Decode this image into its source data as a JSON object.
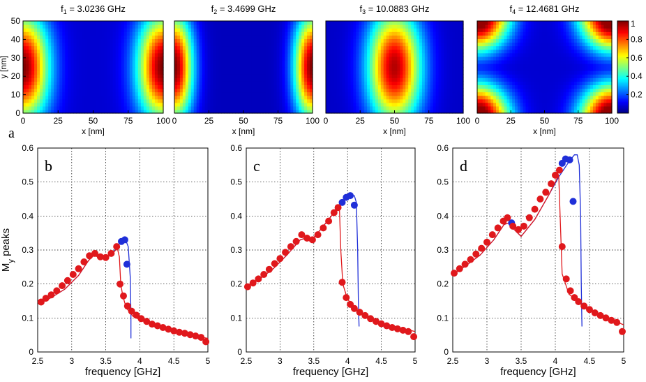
{
  "figure_panel_label": "a",
  "colorbar": {
    "ticks": [
      {
        "value": 1,
        "label": "1"
      },
      {
        "value": 0.8,
        "label": "0.8"
      },
      {
        "value": 0.6,
        "label": "0.6"
      },
      {
        "value": 0.4,
        "label": "0.4"
      },
      {
        "value": 0.2,
        "label": "0.2"
      }
    ],
    "range": [
      0,
      1
    ]
  },
  "chart_data": [
    {
      "type": "heatmap",
      "title_main": "f",
      "title_sub": "1",
      "title_value": " = 3.0236 GHz",
      "mode": "edges",
      "xlabel": "x [nm]",
      "ylabel": "y [nm]",
      "xticks": [
        0,
        25,
        50,
        75,
        100
      ],
      "yticks": [
        0,
        10,
        20,
        30,
        40,
        50
      ],
      "xlim": [
        0,
        100
      ],
      "ylim": [
        0,
        50
      ]
    },
    {
      "type": "heatmap",
      "title_main": "f",
      "title_sub": "2",
      "title_value": " = 3.4699 GHz",
      "mode": "edges_narrow",
      "xlabel": "x [nm]",
      "xticks": [
        0,
        25,
        50,
        75,
        100
      ],
      "xlim": [
        0,
        100
      ],
      "ylim": [
        0,
        50
      ]
    },
    {
      "type": "heatmap",
      "title_main": "f",
      "title_sub": "3",
      "title_value": " = 10.0883 GHz",
      "mode": "center",
      "xlabel": "x [nm]",
      "xticks": [
        0,
        25,
        50,
        75,
        100
      ],
      "xlim": [
        0,
        100
      ],
      "ylim": [
        0,
        50
      ]
    },
    {
      "type": "heatmap",
      "title_main": "f",
      "title_sub": "4",
      "title_value": " = 12.4681 GHz",
      "mode": "corners",
      "xlabel": "x [nm]",
      "xticks": [
        0,
        25,
        50,
        75,
        100
      ],
      "xlim": [
        0,
        100
      ],
      "ylim": [
        0,
        50
      ]
    },
    {
      "type": "scatter",
      "panel_label": "b",
      "xlabel": "frequency [GHz]",
      "ylabel_main": "M",
      "ylabel_sub": "y",
      "ylabel_rest": " peaks",
      "xlim": [
        2.5,
        5
      ],
      "ylim": [
        0,
        0.6
      ],
      "xticks": [
        {
          "value": 2.5,
          "label": "2.5"
        },
        {
          "value": 3,
          "label": "3"
        },
        {
          "value": 3.5,
          "label": "3.5"
        },
        {
          "value": 4,
          "label": "4"
        },
        {
          "value": 4.5,
          "label": "4.5"
        },
        {
          "value": 5,
          "label": "5"
        }
      ],
      "yticks": [
        {
          "value": 0,
          "label": "0"
        },
        {
          "value": 0.1,
          "label": "0.1"
        },
        {
          "value": 0.2,
          "label": "0.2"
        },
        {
          "value": 0.3,
          "label": "0.3"
        },
        {
          "value": 0.4,
          "label": "0.4"
        },
        {
          "value": 0.5,
          "label": "0.5"
        },
        {
          "value": 0.6,
          "label": "0.6"
        }
      ],
      "series": [
        {
          "name": "blue curve",
          "kind": "line",
          "color": "#1f2fd8",
          "x": [
            2.55,
            2.7,
            2.9,
            3.1,
            3.25,
            3.33,
            3.4,
            3.5,
            3.6,
            3.7,
            3.76,
            3.8,
            3.83,
            3.86,
            3.87,
            3.87
          ],
          "y": [
            0.145,
            0.16,
            0.185,
            0.225,
            0.27,
            0.285,
            0.278,
            0.275,
            0.29,
            0.32,
            0.33,
            0.325,
            0.31,
            0.22,
            0.11,
            0.04
          ]
        },
        {
          "name": "red curve",
          "kind": "line",
          "color": "#e0181c",
          "x": [
            2.55,
            2.7,
            2.9,
            3.1,
            3.25,
            3.33,
            3.4,
            3.5,
            3.6,
            3.67,
            3.7,
            3.72,
            3.75,
            3.8,
            3.9,
            4.0,
            4.3,
            4.6,
            5.0
          ],
          "y": [
            0.145,
            0.16,
            0.185,
            0.225,
            0.27,
            0.285,
            0.278,
            0.275,
            0.29,
            0.305,
            0.28,
            0.2,
            0.165,
            0.13,
            0.105,
            0.095,
            0.07,
            0.055,
            0.04
          ]
        },
        {
          "name": "blue markers",
          "kind": "marker",
          "color": "#1f2fd8",
          "x": [
            3.73,
            3.78,
            3.81
          ],
          "y": [
            0.325,
            0.33,
            0.258
          ]
        },
        {
          "name": "red markers",
          "kind": "marker",
          "color": "#e0181c",
          "x": [
            2.55,
            2.62,
            2.7,
            2.78,
            2.86,
            2.94,
            3.02,
            3.1,
            3.18,
            3.26,
            3.34,
            3.42,
            3.5,
            3.58,
            3.66,
            3.71,
            3.76,
            3.82,
            3.88,
            3.95,
            4.02,
            4.1,
            4.18,
            4.26,
            4.34,
            4.42,
            4.5,
            4.58,
            4.66,
            4.74,
            4.82,
            4.9,
            4.97
          ],
          "y": [
            0.147,
            0.158,
            0.168,
            0.18,
            0.195,
            0.21,
            0.228,
            0.245,
            0.265,
            0.283,
            0.29,
            0.28,
            0.278,
            0.29,
            0.31,
            0.2,
            0.165,
            0.135,
            0.12,
            0.108,
            0.098,
            0.09,
            0.082,
            0.077,
            0.072,
            0.067,
            0.062,
            0.058,
            0.055,
            0.051,
            0.047,
            0.043,
            0.03
          ]
        }
      ]
    },
    {
      "type": "scatter",
      "panel_label": "c",
      "xlabel": "frequency [GHz]",
      "xlim": [
        2.5,
        5
      ],
      "ylim": [
        0,
        0.6
      ],
      "xticks": [
        {
          "value": 2.5,
          "label": "2.5"
        },
        {
          "value": 3,
          "label": "3"
        },
        {
          "value": 3.5,
          "label": "3.5"
        },
        {
          "value": 4,
          "label": "4"
        },
        {
          "value": 4.5,
          "label": "4.5"
        },
        {
          "value": 5,
          "label": "5"
        }
      ],
      "yticks": [
        {
          "value": 0,
          "label": "0"
        },
        {
          "value": 0.1,
          "label": "0.1"
        },
        {
          "value": 0.2,
          "label": "0.2"
        },
        {
          "value": 0.3,
          "label": "0.3"
        },
        {
          "value": 0.4,
          "label": "0.4"
        },
        {
          "value": 0.5,
          "label": "0.5"
        },
        {
          "value": 0.6,
          "label": "0.6"
        }
      ],
      "series": [
        {
          "name": "blue curve",
          "kind": "line",
          "color": "#1f2fd8",
          "x": [
            2.52,
            2.7,
            2.9,
            3.1,
            3.3,
            3.38,
            3.45,
            3.6,
            3.8,
            3.95,
            4.05,
            4.1,
            4.13,
            4.15,
            4.16,
            4.17
          ],
          "y": [
            0.19,
            0.215,
            0.245,
            0.285,
            0.33,
            0.335,
            0.325,
            0.36,
            0.41,
            0.445,
            0.46,
            0.46,
            0.44,
            0.3,
            0.15,
            0.075
          ]
        },
        {
          "name": "red curve",
          "kind": "line",
          "color": "#e0181c",
          "x": [
            2.52,
            2.7,
            2.9,
            3.1,
            3.3,
            3.38,
            3.45,
            3.6,
            3.8,
            3.88,
            3.9,
            3.93,
            4.0,
            4.2,
            4.5,
            5.0
          ],
          "y": [
            0.19,
            0.215,
            0.245,
            0.285,
            0.33,
            0.335,
            0.325,
            0.36,
            0.41,
            0.42,
            0.3,
            0.2,
            0.155,
            0.11,
            0.085,
            0.06
          ]
        },
        {
          "name": "blue markers",
          "kind": "marker",
          "color": "#1f2fd8",
          "x": [
            3.92,
            3.98,
            4.04,
            4.1
          ],
          "y": [
            0.44,
            0.455,
            0.46,
            0.432
          ]
        },
        {
          "name": "red markers",
          "kind": "marker",
          "color": "#e0181c",
          "x": [
            2.52,
            2.6,
            2.68,
            2.76,
            2.84,
            2.92,
            3.0,
            3.08,
            3.16,
            3.24,
            3.32,
            3.4,
            3.48,
            3.56,
            3.64,
            3.72,
            3.8,
            3.86,
            3.92,
            3.98,
            4.04,
            4.1,
            4.18,
            4.26,
            4.34,
            4.42,
            4.5,
            4.58,
            4.66,
            4.74,
            4.82,
            4.9,
            4.98
          ],
          "y": [
            0.192,
            0.203,
            0.215,
            0.228,
            0.243,
            0.26,
            0.275,
            0.293,
            0.31,
            0.325,
            0.345,
            0.335,
            0.33,
            0.345,
            0.365,
            0.385,
            0.41,
            0.425,
            0.205,
            0.16,
            0.14,
            0.128,
            0.117,
            0.107,
            0.098,
            0.09,
            0.083,
            0.077,
            0.072,
            0.068,
            0.064,
            0.06,
            0.045
          ]
        }
      ]
    },
    {
      "type": "scatter",
      "panel_label": "d",
      "xlabel": "frequency [GHz]",
      "xlim": [
        2.5,
        5
      ],
      "ylim": [
        0,
        0.6
      ],
      "xticks": [
        {
          "value": 2.5,
          "label": "2.5"
        },
        {
          "value": 3,
          "label": "3"
        },
        {
          "value": 3.5,
          "label": "3.5"
        },
        {
          "value": 4,
          "label": "4"
        },
        {
          "value": 4.5,
          "label": "4.5"
        },
        {
          "value": 5,
          "label": "5"
        }
      ],
      "yticks": [
        {
          "value": 0,
          "label": "0"
        },
        {
          "value": 0.1,
          "label": "0.1"
        },
        {
          "value": 0.2,
          "label": "0.2"
        },
        {
          "value": 0.3,
          "label": "0.3"
        },
        {
          "value": 0.4,
          "label": "0.4"
        },
        {
          "value": 0.5,
          "label": "0.5"
        },
        {
          "value": 0.6,
          "label": "0.6"
        }
      ],
      "series": [
        {
          "name": "blue curve",
          "kind": "line",
          "color": "#1f2fd8",
          "x": [
            2.52,
            2.7,
            2.9,
            3.1,
            3.25,
            3.32,
            3.4,
            3.5,
            3.7,
            3.9,
            4.05,
            4.2,
            4.28,
            4.32,
            4.35,
            4.37,
            4.38,
            4.39
          ],
          "y": [
            0.23,
            0.255,
            0.285,
            0.33,
            0.375,
            0.38,
            0.36,
            0.34,
            0.39,
            0.46,
            0.515,
            0.56,
            0.58,
            0.58,
            0.55,
            0.4,
            0.2,
            0.075
          ]
        },
        {
          "name": "red curve",
          "kind": "line",
          "color": "#e0181c",
          "x": [
            2.52,
            2.7,
            2.9,
            3.1,
            3.25,
            3.32,
            3.4,
            3.5,
            3.7,
            3.9,
            4.0,
            4.05,
            4.07,
            4.1,
            4.2,
            4.5,
            5.0
          ],
          "y": [
            0.23,
            0.255,
            0.285,
            0.33,
            0.375,
            0.38,
            0.36,
            0.34,
            0.39,
            0.46,
            0.5,
            0.52,
            0.4,
            0.23,
            0.17,
            0.12,
            0.08
          ]
        },
        {
          "name": "blue markers",
          "kind": "marker",
          "color": "#1f2fd8",
          "x": [
            3.36,
            4.1,
            4.15,
            4.21,
            4.26
          ],
          "y": [
            0.38,
            0.555,
            0.568,
            0.565,
            0.443
          ]
        },
        {
          "name": "red markers",
          "kind": "marker",
          "color": "#e0181c",
          "x": [
            2.52,
            2.6,
            2.68,
            2.76,
            2.84,
            2.92,
            3.0,
            3.08,
            3.16,
            3.24,
            3.3,
            3.38,
            3.46,
            3.54,
            3.62,
            3.7,
            3.78,
            3.86,
            3.94,
            4.0,
            4.06,
            4.1,
            4.16,
            4.22,
            4.28,
            4.34,
            4.42,
            4.5,
            4.58,
            4.66,
            4.74,
            4.82,
            4.9,
            4.98
          ],
          "y": [
            0.232,
            0.245,
            0.258,
            0.272,
            0.288,
            0.305,
            0.323,
            0.345,
            0.365,
            0.385,
            0.395,
            0.37,
            0.36,
            0.37,
            0.395,
            0.42,
            0.45,
            0.47,
            0.495,
            0.52,
            0.535,
            0.31,
            0.215,
            0.18,
            0.16,
            0.148,
            0.135,
            0.125,
            0.115,
            0.107,
            0.1,
            0.093,
            0.087,
            0.06
          ]
        }
      ]
    }
  ]
}
